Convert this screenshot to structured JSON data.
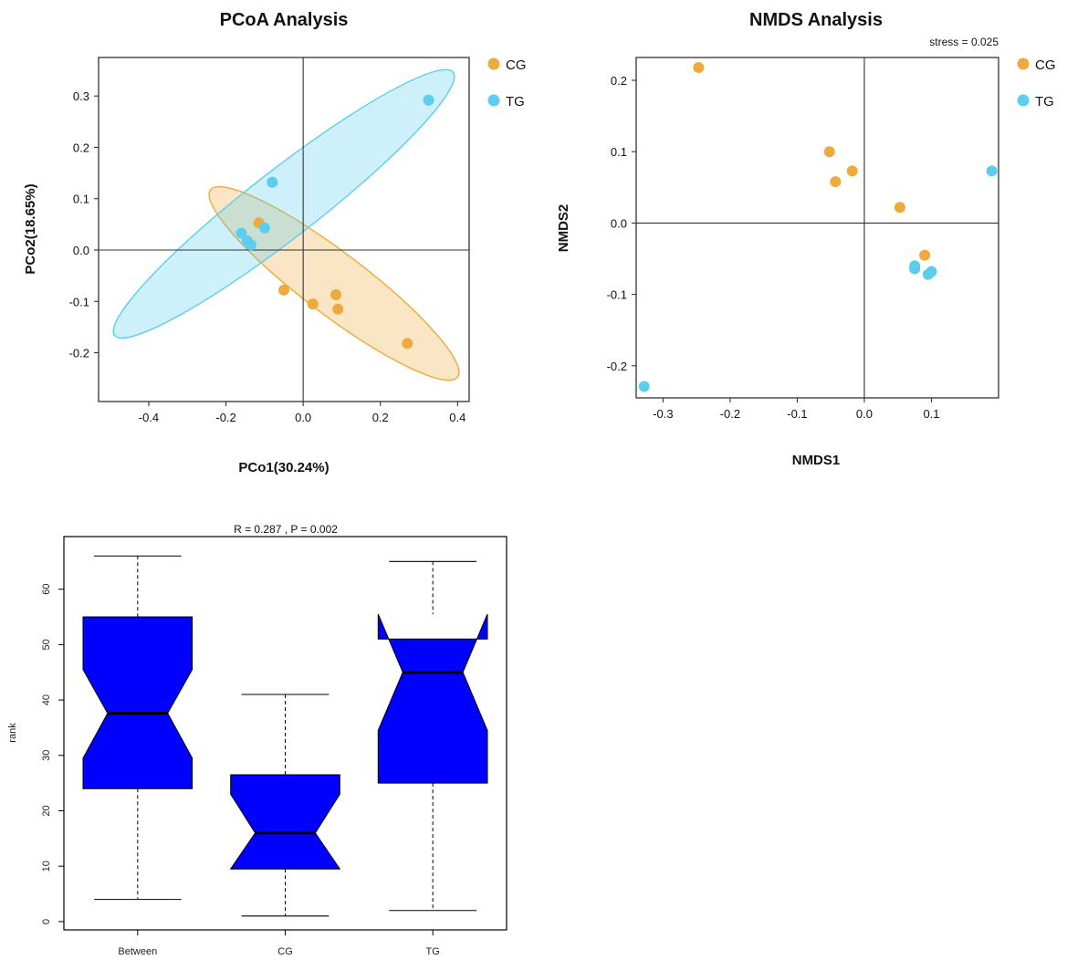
{
  "colors": {
    "cg": "#eeaa3c",
    "tg": "#5ccdee",
    "box": "#0000ff",
    "axis": "#333333"
  },
  "chart_data": [
    {
      "type": "scatter",
      "title": "PCoA Analysis",
      "xlabel": "PCo1(30.24%)",
      "ylabel": "PCo2(18.65%)",
      "xlim": [
        -0.53,
        0.43
      ],
      "ylim": [
        -0.295,
        0.375
      ],
      "xticks": [
        -0.4,
        -0.2,
        0.0,
        0.2,
        0.4
      ],
      "xtick_labels": [
        "-0.4",
        "-0.2",
        "0.0",
        "0.2",
        "0.4"
      ],
      "yticks": [
        -0.2,
        -0.1,
        0.0,
        0.1,
        0.2,
        0.3
      ],
      "ytick_labels": [
        "-0.2",
        "-0.1",
        "0.0",
        "0.1",
        "0.2",
        "0.3"
      ],
      "legend": [
        "CG",
        "TG"
      ],
      "legend_position": "outside-right",
      "series": [
        {
          "name": "CG",
          "x": [
            -0.115,
            -0.05,
            0.025,
            0.085,
            0.09,
            0.27
          ],
          "y": [
            0.053,
            -0.078,
            -0.105,
            -0.087,
            -0.115,
            -0.182
          ]
        },
        {
          "name": "TG",
          "x": [
            -0.08,
            -0.16,
            -0.1,
            -0.145,
            -0.135,
            0.325
          ],
          "y": [
            0.132,
            0.033,
            0.043,
            0.018,
            0.01,
            0.292
          ]
        }
      ],
      "ellipses": [
        {
          "name": "CG",
          "center": [
            0.08,
            -0.065
          ],
          "x_extent": [
            -0.27,
            0.38
          ],
          "y_extent": [
            -0.27,
            0.1
          ]
        },
        {
          "name": "TG",
          "center": [
            -0.05,
            0.09
          ],
          "x_extent": [
            -0.49,
            0.4
          ],
          "y_extent": [
            -0.17,
            0.35
          ]
        }
      ]
    },
    {
      "type": "scatter",
      "title": "NMDS Analysis",
      "annotation": "stress = 0.025",
      "xlabel": "NMDS1",
      "ylabel": "NMDS2",
      "xlim": [
        -0.34,
        0.2
      ],
      "ylim": [
        -0.245,
        0.232
      ],
      "xticks": [
        -0.3,
        -0.2,
        -0.1,
        0.0,
        0.1
      ],
      "xtick_labels": [
        "-0.3",
        "-0.2",
        "-0.1",
        "0.0",
        "0.1"
      ],
      "yticks": [
        -0.2,
        -0.1,
        0.0,
        0.1,
        0.2
      ],
      "ytick_labels": [
        "-0.2",
        "-0.1",
        "0.0",
        "0.1",
        "0.2"
      ],
      "legend": [
        "CG",
        "TG"
      ],
      "legend_position": "outside-right",
      "series": [
        {
          "name": "CG",
          "x": [
            -0.247,
            -0.052,
            -0.018,
            -0.043,
            0.053,
            0.09
          ],
          "y": [
            0.218,
            0.1,
            0.073,
            0.058,
            0.022,
            -0.045
          ]
        },
        {
          "name": "TG",
          "x": [
            0.19,
            0.075,
            0.075,
            0.1,
            0.095,
            -0.328
          ],
          "y": [
            0.073,
            -0.06,
            -0.064,
            -0.068,
            -0.072,
            -0.229
          ]
        }
      ]
    },
    {
      "type": "box",
      "title": "R = 0.287 , P = 0.002",
      "xlabel": "",
      "ylabel": "rank",
      "ylim": [
        -1.5,
        69.5
      ],
      "yticks": [
        0,
        10,
        20,
        30,
        40,
        50,
        60
      ],
      "ytick_labels": [
        "0",
        "10",
        "20",
        "30",
        "40",
        "50",
        "60"
      ],
      "categories": [
        "Between",
        "CG",
        "TG"
      ],
      "boxes": [
        {
          "name": "Between",
          "min": 4,
          "q1": 24,
          "notch_low": 29.5,
          "median": 37.6,
          "notch_high": 45.5,
          "q3": 55,
          "max": 66
        },
        {
          "name": "CG",
          "min": 1,
          "q1": 9.5,
          "notch_low": 9.5,
          "median": 16,
          "notch_high": 23,
          "q3": 26.5,
          "max": 41
        },
        {
          "name": "TG",
          "min": 2,
          "q1": 25,
          "notch_low": 34.5,
          "median": 45,
          "notch_high": 55.5,
          "q3": 51,
          "max": 65
        }
      ]
    }
  ]
}
